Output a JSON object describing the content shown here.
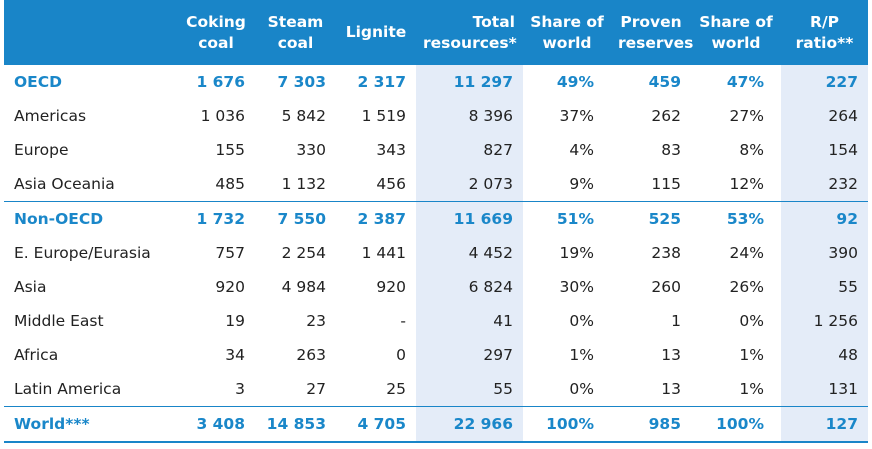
{
  "columns": [
    {
      "key": "region",
      "label": ""
    },
    {
      "key": "coking",
      "label": "Coking\ncoal"
    },
    {
      "key": "steam",
      "label": "Steam\ncoal"
    },
    {
      "key": "lignite",
      "label": "Lignite"
    },
    {
      "key": "total",
      "label": "Total\nresources*"
    },
    {
      "key": "share_res",
      "label": "Share of\nworld"
    },
    {
      "key": "proven",
      "label": "Proven\nreserves"
    },
    {
      "key": "share_prov",
      "label": "Share of\nworld"
    },
    {
      "key": "rp",
      "label": "R/P\nratio**"
    }
  ],
  "rows": [
    {
      "type": "group",
      "cells": [
        "OECD",
        "1 676",
        "7 303",
        "2 317",
        "11 297",
        "49%",
        "459",
        "47%",
        "227"
      ]
    },
    {
      "type": "item",
      "cells": [
        "Americas",
        "1 036",
        "5 842",
        "1 519",
        "8 396",
        "37%",
        "262",
        "27%",
        "264"
      ]
    },
    {
      "type": "item",
      "cells": [
        "Europe",
        "155",
        "330",
        "343",
        "827",
        "4%",
        "83",
        "8%",
        "154"
      ]
    },
    {
      "type": "item",
      "cells": [
        "Asia Oceania",
        "485",
        "1 132",
        "456",
        "2 073",
        "9%",
        "115",
        "12%",
        "232"
      ]
    },
    {
      "type": "group",
      "cells": [
        "Non-OECD",
        "1 732",
        "7 550",
        "2 387",
        "11 669",
        "51%",
        "525",
        "53%",
        "92"
      ]
    },
    {
      "type": "item",
      "cells": [
        "E. Europe/Eurasia",
        "757",
        "2 254",
        "1 441",
        "4 452",
        "19%",
        "238",
        "24%",
        "390"
      ]
    },
    {
      "type": "item",
      "cells": [
        "Asia",
        "920",
        "4 984",
        "920",
        "6 824",
        "30%",
        "260",
        "26%",
        "55"
      ]
    },
    {
      "type": "item",
      "cells": [
        "Middle East",
        "19",
        "23",
        "-",
        "41",
        "0%",
        "1",
        "0%",
        "1 256"
      ]
    },
    {
      "type": "item",
      "cells": [
        "Africa",
        "34",
        "263",
        "0",
        "297",
        "1%",
        "13",
        "1%",
        "48"
      ]
    },
    {
      "type": "item",
      "cells": [
        "Latin America",
        "3",
        "27",
        "25",
        "55",
        "0%",
        "13",
        "1%",
        "131"
      ]
    },
    {
      "type": "total",
      "cells": [
        "World***",
        "3 408",
        "14 853",
        "4 705",
        "22 966",
        "100%",
        "985",
        "100%",
        "127"
      ]
    }
  ],
  "colors": {
    "header_bg": "#1985c8",
    "group_text": "#1a87c9",
    "shaded_col": "#e4ecf8"
  }
}
